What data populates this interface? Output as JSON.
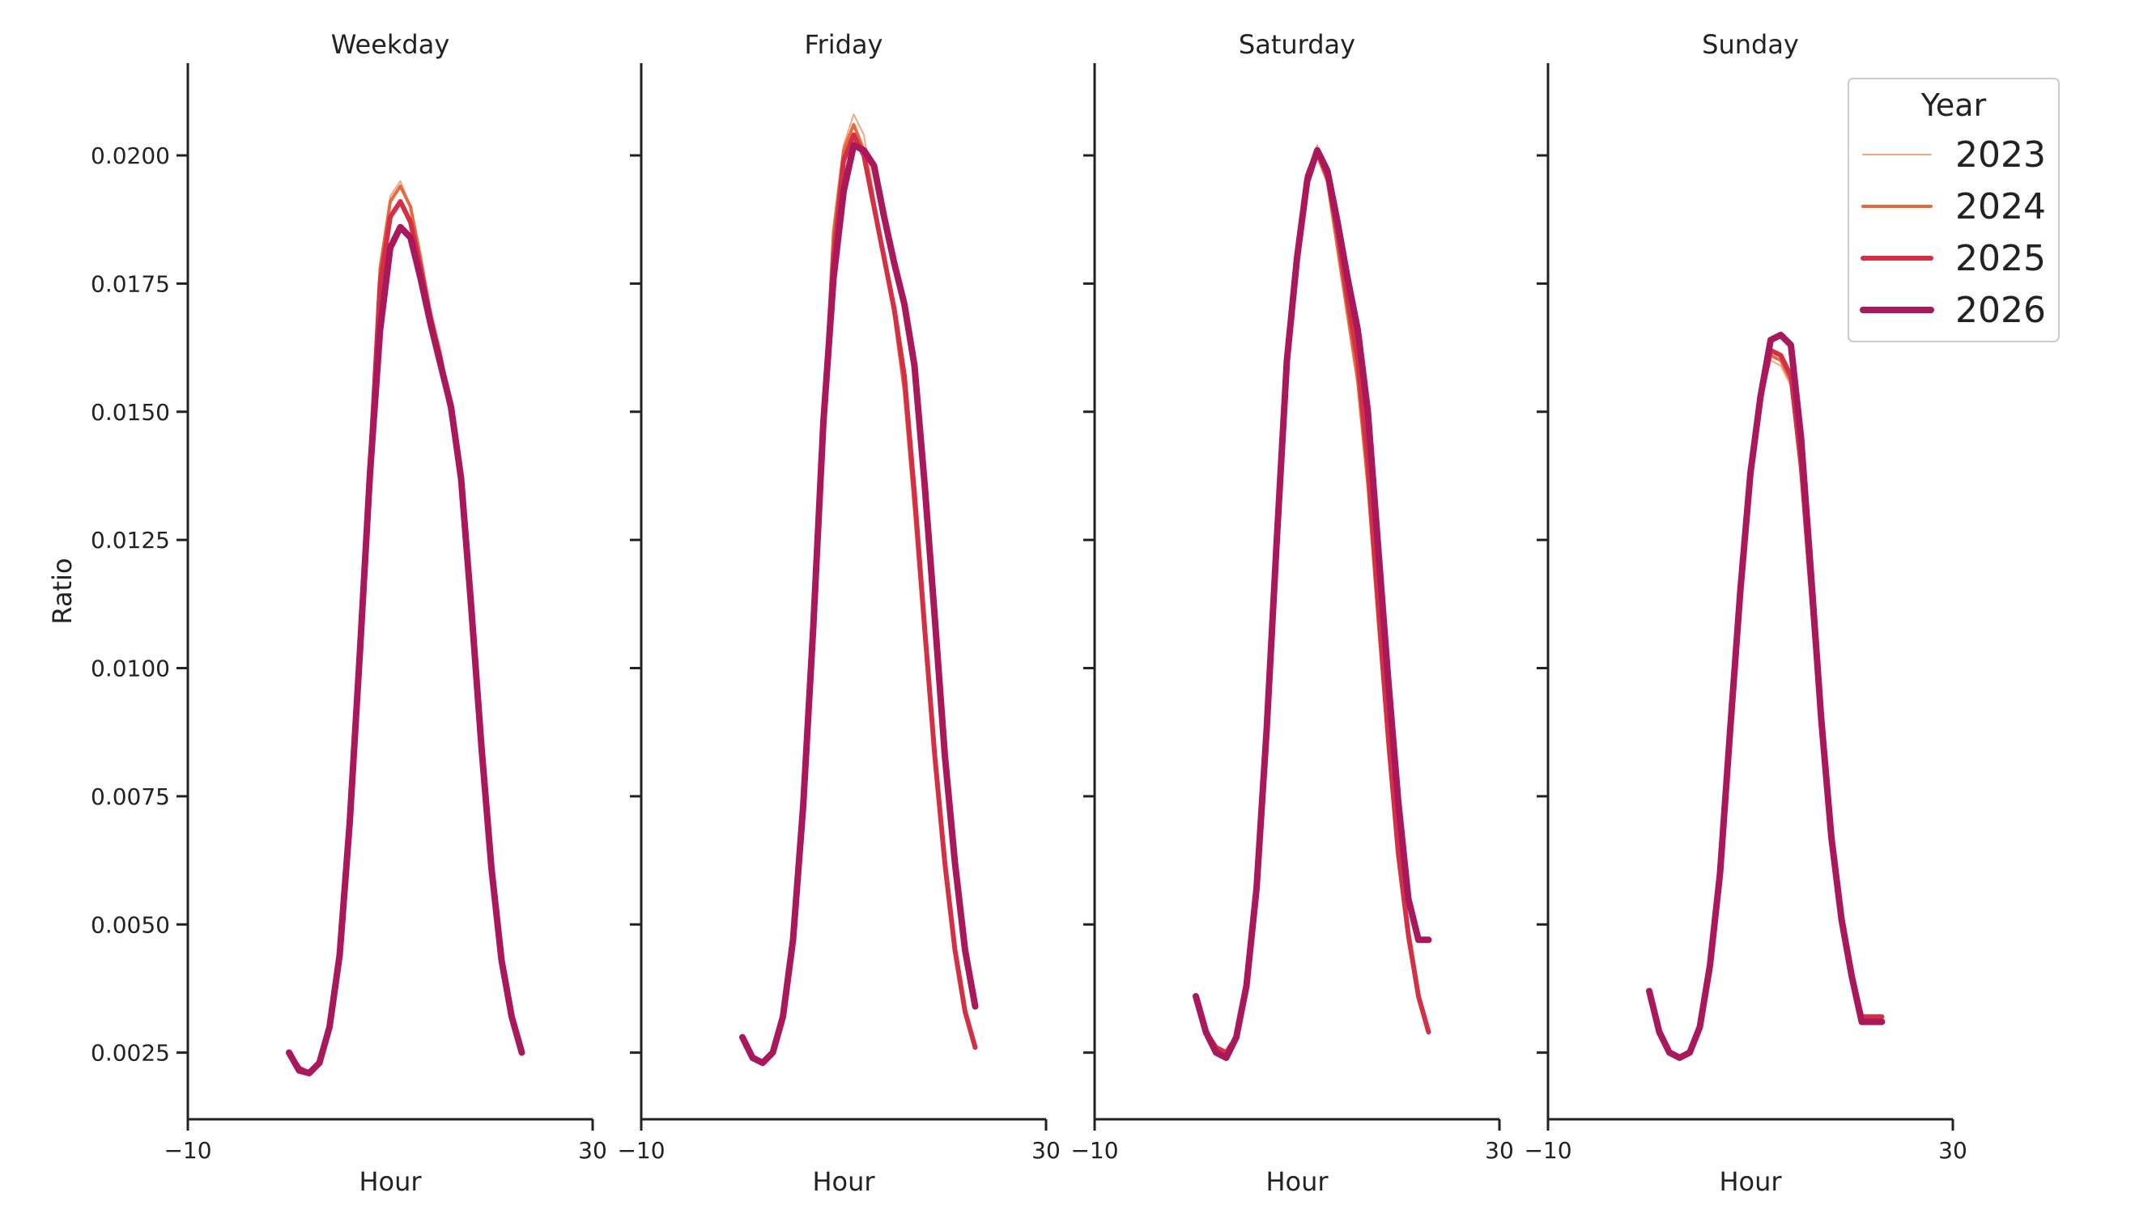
{
  "chart_data": {
    "type": "line",
    "ylabel": "Ratio",
    "xlabel": "Hour",
    "xlim": [
      -10,
      30
    ],
    "ylim": [
      0.0012,
      0.0218
    ],
    "xticks": [
      -10,
      30
    ],
    "xtick_labels": [
      "−10",
      "30"
    ],
    "yticks": [
      0.0025,
      0.005,
      0.0075,
      0.01,
      0.0125,
      0.015,
      0.0175,
      0.02
    ],
    "ytick_labels": [
      "0.0025",
      "0.0050",
      "0.0075",
      "0.0100",
      "0.0125",
      "0.0150",
      "0.0175",
      "0.0200"
    ],
    "legend": {
      "title": "Year",
      "position": "top-right",
      "items": [
        {
          "label": "2023",
          "color": "#f4a582"
        },
        {
          "label": "2024",
          "color": "#e8683f"
        },
        {
          "label": "2025",
          "color": "#d32f45"
        },
        {
          "label": "2026",
          "color": "#a8185a"
        }
      ]
    },
    "hours": [
      0,
      1,
      2,
      3,
      4,
      5,
      6,
      7,
      8,
      9,
      10,
      11,
      12,
      13,
      14,
      15,
      16,
      17,
      18,
      19,
      20,
      21,
      22,
      23
    ],
    "panels": [
      {
        "title": "Weekday",
        "series": [
          {
            "name": "2023",
            "values": [
              0.0025,
              0.0022,
              0.0021,
              0.0023,
              0.003,
              0.0045,
              0.0072,
              0.0105,
              0.014,
              0.0178,
              0.0192,
              0.0195,
              0.019,
              0.018,
              0.017,
              0.0162,
              0.015,
              0.0135,
              0.011,
              0.0085,
              0.0062,
              0.0045,
              0.0032,
              0.0025
            ]
          },
          {
            "name": "2024",
            "values": [
              0.0025,
              0.0022,
              0.0021,
              0.0023,
              0.003,
              0.0045,
              0.0072,
              0.0105,
              0.014,
              0.0178,
              0.0191,
              0.0194,
              0.019,
              0.018,
              0.0169,
              0.016,
              0.015,
              0.0136,
              0.0111,
              0.0085,
              0.0061,
              0.0043,
              0.0032,
              0.0025
            ]
          },
          {
            "name": "2025",
            "values": [
              0.0025,
              0.0022,
              0.0021,
              0.0023,
              0.003,
              0.0044,
              0.0071,
              0.0104,
              0.0139,
              0.0175,
              0.0188,
              0.0191,
              0.0187,
              0.0178,
              0.0168,
              0.016,
              0.015,
              0.0136,
              0.0112,
              0.0085,
              0.0061,
              0.0043,
              0.0032,
              0.0025
            ]
          },
          {
            "name": "2026",
            "values": [
              0.0025,
              0.00215,
              0.0021,
              0.0023,
              0.003,
              0.0044,
              0.007,
              0.0103,
              0.0138,
              0.0166,
              0.0182,
              0.0186,
              0.0184,
              0.0176,
              0.0167,
              0.0159,
              0.0151,
              0.0137,
              0.0112,
              0.0085,
              0.0061,
              0.0043,
              0.0032,
              0.0025
            ]
          }
        ]
      },
      {
        "title": "Friday",
        "series": [
          {
            "name": "2023",
            "values": [
              0.0028,
              0.0024,
              0.0023,
              0.0025,
              0.0032,
              0.0047,
              0.0073,
              0.0108,
              0.0148,
              0.0185,
              0.0202,
              0.0208,
              0.0204,
              0.0192,
              0.0181,
              0.017,
              0.0154,
              0.013,
              0.0105,
              0.0082,
              0.0062,
              0.0045,
              0.0033,
              0.0026
            ]
          },
          {
            "name": "2024",
            "values": [
              0.0028,
              0.0024,
              0.0023,
              0.0025,
              0.0032,
              0.0047,
              0.0073,
              0.0108,
              0.0148,
              0.0185,
              0.0201,
              0.0206,
              0.0201,
              0.019,
              0.018,
              0.0169,
              0.0154,
              0.0131,
              0.0106,
              0.0082,
              0.0062,
              0.0045,
              0.0033,
              0.0026
            ]
          },
          {
            "name": "2025",
            "values": [
              0.0028,
              0.0024,
              0.0023,
              0.0025,
              0.0032,
              0.0047,
              0.0073,
              0.0108,
              0.0148,
              0.018,
              0.0199,
              0.0204,
              0.02,
              0.019,
              0.018,
              0.017,
              0.0157,
              0.0134,
              0.0108,
              0.0083,
              0.0062,
              0.0045,
              0.0033,
              0.0026
            ]
          },
          {
            "name": "2026",
            "values": [
              0.0028,
              0.0024,
              0.0023,
              0.0025,
              0.0032,
              0.0047,
              0.0073,
              0.0108,
              0.0148,
              0.0176,
              0.0193,
              0.0202,
              0.0201,
              0.0198,
              0.0188,
              0.0179,
              0.0171,
              0.0159,
              0.0136,
              0.011,
              0.0083,
              0.0062,
              0.0045,
              0.0034
            ]
          }
        ]
      },
      {
        "title": "Saturday",
        "series": [
          {
            "name": "2023",
            "values": [
              0.0036,
              0.0029,
              0.0026,
              0.0025,
              0.0028,
              0.0038,
              0.0057,
              0.0088,
              0.0125,
              0.016,
              0.0182,
              0.0197,
              0.0202,
              0.0196,
              0.0183,
              0.0169,
              0.0155,
              0.0134,
              0.0108,
              0.0083,
              0.0062,
              0.0047,
              0.0036,
              0.0029
            ]
          },
          {
            "name": "2024",
            "values": [
              0.0036,
              0.0029,
              0.0026,
              0.0025,
              0.0028,
              0.0038,
              0.0057,
              0.0088,
              0.0125,
              0.016,
              0.0181,
              0.0196,
              0.02,
              0.0195,
              0.0182,
              0.0169,
              0.0156,
              0.0136,
              0.011,
              0.0085,
              0.0063,
              0.0047,
              0.0036,
              0.0029
            ]
          },
          {
            "name": "2025",
            "values": [
              0.0036,
              0.0029,
              0.0026,
              0.0025,
              0.0028,
              0.0038,
              0.0057,
              0.0088,
              0.0125,
              0.016,
              0.018,
              0.0196,
              0.0201,
              0.0196,
              0.0185,
              0.0172,
              0.016,
              0.014,
              0.0113,
              0.0087,
              0.0064,
              0.0048,
              0.0036,
              0.0029
            ]
          },
          {
            "name": "2026",
            "values": [
              0.0036,
              0.0029,
              0.0025,
              0.0024,
              0.0028,
              0.0038,
              0.0057,
              0.0088,
              0.0125,
              0.016,
              0.018,
              0.0195,
              0.0201,
              0.0197,
              0.0187,
              0.0176,
              0.0166,
              0.015,
              0.0124,
              0.0098,
              0.0074,
              0.0055,
              0.0047,
              0.0047
            ]
          }
        ]
      },
      {
        "title": "Sunday",
        "series": [
          {
            "name": "2023",
            "values": [
              0.0037,
              0.0029,
              0.0025,
              0.0024,
              0.0025,
              0.003,
              0.0041,
              0.006,
              0.0088,
              0.0115,
              0.0138,
              0.0152,
              0.016,
              0.0159,
              0.0155,
              0.0137,
              0.0112,
              0.0087,
              0.0066,
              0.0051,
              0.004,
              0.0032,
              0.0032,
              0.0032
            ]
          },
          {
            "name": "2024",
            "values": [
              0.0037,
              0.0029,
              0.0025,
              0.0024,
              0.0025,
              0.003,
              0.0041,
              0.006,
              0.0088,
              0.0115,
              0.0138,
              0.0152,
              0.0161,
              0.016,
              0.0156,
              0.0138,
              0.0113,
              0.0088,
              0.0067,
              0.0051,
              0.004,
              0.0032,
              0.0032,
              0.0032
            ]
          },
          {
            "name": "2025",
            "values": [
              0.0037,
              0.0029,
              0.0025,
              0.0024,
              0.0025,
              0.003,
              0.0041,
              0.006,
              0.0088,
              0.0115,
              0.0138,
              0.0153,
              0.0162,
              0.0161,
              0.0157,
              0.014,
              0.0115,
              0.0089,
              0.0067,
              0.0052,
              0.004,
              0.0032,
              0.0032,
              0.0032
            ]
          },
          {
            "name": "2026",
            "values": [
              0.0037,
              0.0029,
              0.0025,
              0.0024,
              0.0025,
              0.003,
              0.0042,
              0.006,
              0.0088,
              0.0115,
              0.0138,
              0.0153,
              0.0164,
              0.0165,
              0.0163,
              0.0145,
              0.0118,
              0.009,
              0.0067,
              0.0051,
              0.004,
              0.0031,
              0.0031,
              0.0031
            ]
          }
        ]
      }
    ]
  }
}
